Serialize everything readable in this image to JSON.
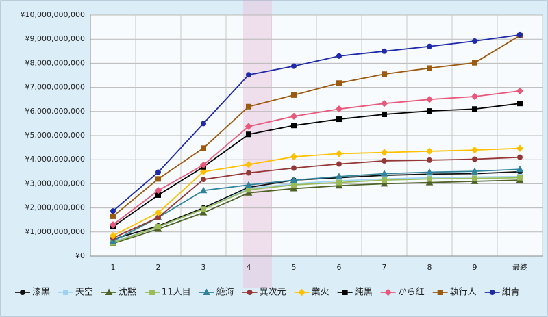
{
  "chart_data": {
    "type": "line",
    "categories": [
      "1",
      "2",
      "3",
      "4",
      "5",
      "6",
      "7",
      "8",
      "9",
      "最終"
    ],
    "ylim": [
      0,
      10000000000
    ],
    "yticks": [
      {
        "value": 0,
        "label": "¥0"
      },
      {
        "value": 1000000000,
        "label": "¥1,000,000,000"
      },
      {
        "value": 2000000000,
        "label": "¥2,000,000,000"
      },
      {
        "value": 3000000000,
        "label": "¥3,000,000,000"
      },
      {
        "value": 4000000000,
        "label": "¥4,000,000,000"
      },
      {
        "value": 5000000000,
        "label": "¥5,000,000,000"
      },
      {
        "value": 6000000000,
        "label": "¥6,000,000,000"
      },
      {
        "value": 7000000000,
        "label": "¥7,000,000,000"
      },
      {
        "value": 8000000000,
        "label": "¥8,000,000,000"
      },
      {
        "value": 9000000000,
        "label": "¥9,000,000,000"
      },
      {
        "value": 10000000000,
        "label": "¥10,000,000,000"
      }
    ],
    "grid": true,
    "legend": "bottom",
    "series": [
      {
        "name": "漆黒",
        "color": "#111111",
        "marker": "circle",
        "values": [
          700000000,
          1250000000,
          2000000000,
          2850000000,
          3150000000,
          3250000000,
          3350000000,
          3400000000,
          3420000000,
          3500000000
        ]
      },
      {
        "name": "天空",
        "color": "#9dd3f0",
        "marker": "square",
        "values": [
          600000000,
          1200000000,
          1950000000,
          2800000000,
          3000000000,
          3120000000,
          3200000000,
          3250000000,
          3280000000,
          3300000000
        ]
      },
      {
        "name": "沈黙",
        "color": "#4f6228",
        "marker": "triangle",
        "values": [
          520000000,
          1120000000,
          1800000000,
          2620000000,
          2800000000,
          2920000000,
          3000000000,
          3050000000,
          3100000000,
          3150000000
        ]
      },
      {
        "name": "11人目",
        "color": "#9bbb59",
        "marker": "square",
        "values": [
          550000000,
          1220000000,
          1950000000,
          2750000000,
          2950000000,
          3050000000,
          3150000000,
          3200000000,
          3220000000,
          3250000000
        ]
      },
      {
        "name": "絶海",
        "color": "#31849b",
        "marker": "triangle",
        "values": [
          620000000,
          1600000000,
          2720000000,
          2950000000,
          3150000000,
          3300000000,
          3420000000,
          3480000000,
          3520000000,
          3600000000
        ]
      },
      {
        "name": "異次元",
        "color": "#953735",
        "marker": "circle",
        "values": [
          750000000,
          1600000000,
          3180000000,
          3450000000,
          3650000000,
          3820000000,
          3950000000,
          3980000000,
          4020000000,
          4100000000
        ]
      },
      {
        "name": "業火",
        "color": "#ffc000",
        "marker": "diamond",
        "values": [
          850000000,
          1800000000,
          3500000000,
          3800000000,
          4120000000,
          4250000000,
          4300000000,
          4350000000,
          4400000000,
          4470000000
        ]
      },
      {
        "name": "純黒",
        "color": "#000000",
        "marker": "square",
        "values": [
          1220000000,
          2530000000,
          3700000000,
          5050000000,
          5420000000,
          5680000000,
          5880000000,
          6020000000,
          6100000000,
          6330000000
        ]
      },
      {
        "name": "から紅",
        "color": "#e8587a",
        "marker": "diamond",
        "values": [
          1300000000,
          2720000000,
          3780000000,
          5380000000,
          5800000000,
          6100000000,
          6330000000,
          6500000000,
          6620000000,
          6850000000
        ]
      },
      {
        "name": "執行人",
        "color": "#9c5a0f",
        "marker": "square",
        "values": [
          1650000000,
          3200000000,
          4480000000,
          6200000000,
          6680000000,
          7180000000,
          7550000000,
          7800000000,
          8020000000,
          9150000000
        ]
      },
      {
        "name": "紺青",
        "color": "#1f2aa8",
        "marker": "circle",
        "values": [
          1870000000,
          3480000000,
          5500000000,
          7520000000,
          7880000000,
          8300000000,
          8500000000,
          8700000000,
          8920000000,
          9180000000
        ]
      }
    ]
  }
}
